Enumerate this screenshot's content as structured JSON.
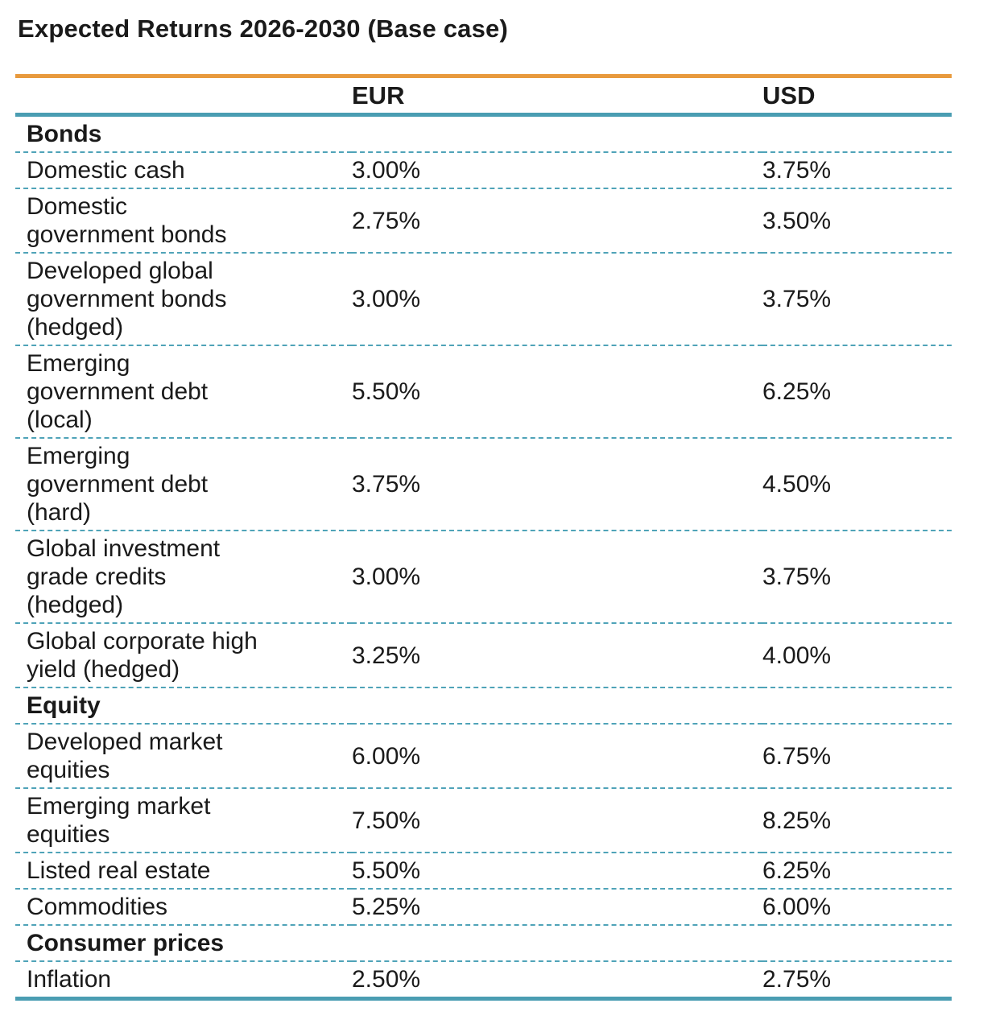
{
  "title": "Expected Returns 2026-2030 (Base case)",
  "colors": {
    "top_rule": "#E89A3D",
    "header_rule": "#4A9DB2",
    "row_divider": "#4FA3B8",
    "text": "#1A1A1A"
  },
  "table": {
    "column_headers": {
      "label": "",
      "eur": "EUR",
      "usd": "USD"
    },
    "rows": [
      {
        "type": "section",
        "label": "Bonds"
      },
      {
        "type": "data",
        "label": "Domestic cash",
        "eur": "3.00%",
        "usd": "3.75%"
      },
      {
        "type": "data",
        "label": "Domestic\ngovernment bonds",
        "eur": "2.75%",
        "usd": "3.50%"
      },
      {
        "type": "data",
        "label": "Developed global\ngovernment bonds\n(hedged)",
        "eur": "3.00%",
        "usd": "3.75%"
      },
      {
        "type": "data",
        "label": "Emerging\ngovernment debt\n(local)",
        "eur": "5.50%",
        "usd": "6.25%"
      },
      {
        "type": "data",
        "label": "Emerging\ngovernment debt\n(hard)",
        "eur": "3.75%",
        "usd": "4.50%"
      },
      {
        "type": "data",
        "label": "Global investment\ngrade credits\n(hedged)",
        "eur": "3.00%",
        "usd": "3.75%"
      },
      {
        "type": "data",
        "label": "Global corporate high\nyield (hedged)",
        "eur": "3.25%",
        "usd": "4.00%"
      },
      {
        "type": "section",
        "label": "Equity"
      },
      {
        "type": "data",
        "label": "Developed market\nequities",
        "eur": "6.00%",
        "usd": "6.75%"
      },
      {
        "type": "data",
        "label": "Emerging market\nequities",
        "eur": "7.50%",
        "usd": "8.25%"
      },
      {
        "type": "data",
        "label": "Listed real estate",
        "eur": "5.50%",
        "usd": "6.25%"
      },
      {
        "type": "data",
        "label": "Commodities",
        "eur": "5.25%",
        "usd": "6.00%"
      },
      {
        "type": "section",
        "label": "Consumer prices"
      },
      {
        "type": "data",
        "label": "Inflation",
        "eur": "2.50%",
        "usd": "2.75%"
      }
    ]
  },
  "chart_data": {
    "type": "table",
    "title": "Expected Returns 2026-2030 (Base case)",
    "columns": [
      "",
      "EUR",
      "USD"
    ],
    "sections": [
      {
        "name": "Bonds",
        "rows": [
          [
            "Domestic cash",
            "3.00%",
            "3.75%"
          ],
          [
            "Domestic government bonds",
            "2.75%",
            "3.50%"
          ],
          [
            "Developed global government bonds (hedged)",
            "3.00%",
            "3.75%"
          ],
          [
            "Emerging government debt (local)",
            "5.50%",
            "6.25%"
          ],
          [
            "Emerging government debt (hard)",
            "3.75%",
            "4.50%"
          ],
          [
            "Global investment grade credits (hedged)",
            "3.00%",
            "3.75%"
          ],
          [
            "Global corporate high yield (hedged)",
            "3.25%",
            "4.00%"
          ]
        ]
      },
      {
        "name": "Equity",
        "rows": [
          [
            "Developed market equities",
            "6.00%",
            "6.75%"
          ],
          [
            "Emerging market equities",
            "7.50%",
            "8.25%"
          ],
          [
            "Listed real estate",
            "5.50%",
            "6.25%"
          ],
          [
            "Commodities",
            "5.25%",
            "6.00%"
          ]
        ]
      },
      {
        "name": "Consumer prices",
        "rows": [
          [
            "Inflation",
            "2.50%",
            "2.75%"
          ]
        ]
      }
    ]
  }
}
